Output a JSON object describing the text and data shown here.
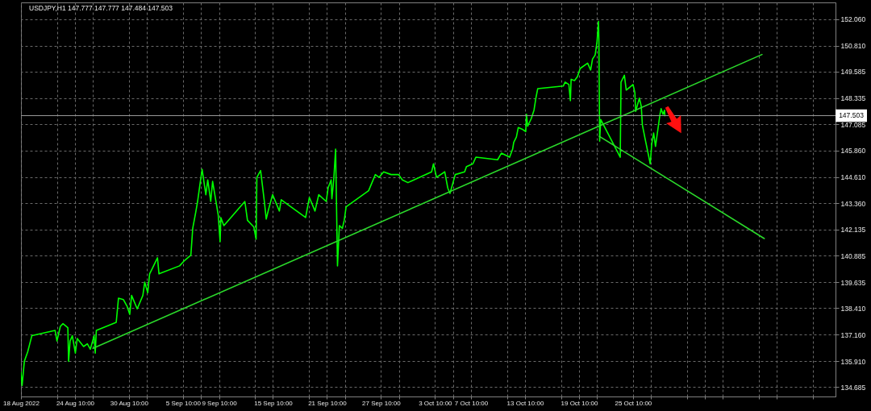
{
  "chart_data": {
    "type": "line",
    "title": "USDJPY,H1 147.777 147.777 147.484 147.503",
    "xlim": [
      "2022-08-18T10:00",
      "2022-11-16T22:00"
    ],
    "xticks": [
      {
        "value": "2022-08-18T10:00",
        "label": "18 Aug 2022"
      },
      {
        "value": "2022-08-22T10:00",
        "label": null
      },
      {
        "value": "2022-08-24T10:00",
        "label": "24 Aug 10:00"
      },
      {
        "value": "2022-08-26T10:00",
        "label": null
      },
      {
        "value": "2022-08-30T10:00",
        "label": "30 Aug 10:00"
      },
      {
        "value": "2022-09-01T10:00",
        "label": null
      },
      {
        "value": "2022-09-05T10:00",
        "label": "5 Sep 10:00"
      },
      {
        "value": "2022-09-07T10:00",
        "label": null
      },
      {
        "value": "2022-09-09T10:00",
        "label": "9 Sep 10:00"
      },
      {
        "value": "2022-09-13T10:00",
        "label": null
      },
      {
        "value": "2022-09-15T10:00",
        "label": "15 Sep 10:00"
      },
      {
        "value": "2022-09-19T10:00",
        "label": null
      },
      {
        "value": "2022-09-21T10:00",
        "label": "21 Sep 10:00"
      },
      {
        "value": "2022-09-23T10:00",
        "label": null
      },
      {
        "value": "2022-09-27T10:00",
        "label": "27 Sep 10:00"
      },
      {
        "value": "2022-09-29T10:00",
        "label": null
      },
      {
        "value": "2022-10-03T10:00",
        "label": "3 Oct 10:00"
      },
      {
        "value": "2022-10-05T10:00",
        "label": null
      },
      {
        "value": "2022-10-07T10:00",
        "label": "7 Oct 10:00"
      },
      {
        "value": "2022-10-11T10:00",
        "label": null
      },
      {
        "value": "2022-10-13T10:00",
        "label": "13 Oct 10:00"
      },
      {
        "value": "2022-10-17T10:00",
        "label": null
      },
      {
        "value": "2022-10-19T10:00",
        "label": "19 Oct 10:00"
      },
      {
        "value": "2022-10-21T10:00",
        "label": null
      },
      {
        "value": "2022-10-25T10:00",
        "label": "25 Oct 10:00"
      },
      {
        "value": "2022-10-27T10:00",
        "label": null
      },
      {
        "value": "2022-10-31T10:00",
        "label": null
      },
      {
        "value": "2022-11-02T10:00",
        "label": null
      },
      {
        "value": "2022-11-04T10:00",
        "label": null
      },
      {
        "value": "2022-11-08T10:00",
        "label": null
      },
      {
        "value": "2022-11-10T10:00",
        "label": null
      },
      {
        "value": "2022-11-14T10:00",
        "label": null
      }
    ],
    "ylim": [
      134.24,
      152.85
    ],
    "yticks": [
      134.685,
      {
        "value": 135.91,
        "label": "135.910"
      },
      {
        "value": 137.16,
        "label": "137.160"
      },
      {
        "value": 138.41,
        "label": "138.410"
      },
      139.635,
      140.885,
      142.135,
      {
        "value": 143.36,
        "label": "143.360"
      },
      {
        "value": 144.61,
        "label": "144.610"
      },
      {
        "value": 145.86,
        "label": "145.860"
      },
      147.085,
      148.335,
      149.585,
      {
        "value": 150.81,
        "label": "150.810"
      },
      {
        "value": 152.06,
        "label": "152.060"
      }
    ],
    "grid": true,
    "series": [
      {
        "color": "#00ff00",
        "x": [
          "2022-08-18T10:00",
          "2022-08-18T13:00",
          "2022-08-18T19:00",
          "2022-08-19T04:00",
          "2022-08-19T15:00",
          "2022-08-22T05:00",
          "2022-08-22T10:00",
          "2022-08-22T19:00",
          "2022-08-23T02:00",
          "2022-08-23T15:00",
          "2022-08-23T17:00",
          "2022-08-23T21:00",
          "2022-08-24T03:00",
          "2022-08-24T11:00",
          "2022-08-24T16:00",
          "2022-08-25T09:00",
          "2022-08-25T19:00",
          "2022-08-26T03:00",
          "2022-08-26T13:00",
          "2022-08-26T16:00",
          "2022-08-26T19:00",
          "2022-08-29T00:00",
          "2022-08-29T06:00",
          "2022-08-29T19:00",
          "2022-08-30T05:00",
          "2022-08-30T12:00",
          "2022-08-30T17:00",
          "2022-08-31T08:00",
          "2022-08-31T23:00",
          "2022-09-01T04:00",
          "2022-09-01T12:00",
          "2022-09-01T17:00",
          "2022-09-02T00:00",
          "2022-09-02T14:00",
          "2022-09-02T18:00",
          "2022-09-05T01:00",
          "2022-09-05T14:00",
          "2022-09-06T07:00",
          "2022-09-06T12:00",
          "2022-09-06T20:00",
          "2022-09-07T01:00",
          "2022-09-07T06:00",
          "2022-09-07T13:00",
          "2022-09-07T23:00",
          "2022-09-08T04:00",
          "2022-09-08T12:00",
          "2022-09-08T17:00",
          "2022-09-09T08:00",
          "2022-09-09T13:00",
          "2022-09-09T15:00",
          "2022-09-09T23:00",
          "2022-09-12T07:00",
          "2022-09-12T14:00",
          "2022-09-13T07:00",
          "2022-09-13T13:00",
          "2022-09-13T15:00",
          "2022-09-14T01:00",
          "2022-09-14T11:00",
          "2022-09-14T16:00",
          "2022-09-14T23:00",
          "2022-09-15T09:00",
          "2022-09-16T03:00",
          "2022-09-16T08:00",
          "2022-09-19T01:00",
          "2022-09-19T11:00",
          "2022-09-20T02:00",
          "2022-09-20T12:00",
          "2022-09-21T08:00",
          "2022-09-21T13:00",
          "2022-09-21T21:00",
          "2022-09-21T23:00",
          "2022-09-22T04:00",
          "2022-09-22T09:00",
          "2022-09-22T14:00",
          "2022-09-22T19:00",
          "2022-09-23T03:00",
          "2022-09-23T08:00",
          "2022-09-23T13:00",
          "2022-09-26T01:00",
          "2022-09-26T19:00",
          "2022-09-27T05:00",
          "2022-09-27T17:00",
          "2022-09-28T13:00",
          "2022-09-29T09:00",
          "2022-09-29T19:00",
          "2022-09-30T10:00",
          "2022-10-03T01:00",
          "2022-10-03T06:00",
          "2022-10-03T14:00",
          "2022-10-04T12:00",
          "2022-10-04T20:00",
          "2022-10-05T02:00",
          "2022-10-05T16:00",
          "2022-10-06T17:00",
          "2022-10-06T22:00",
          "2022-10-07T15:00",
          "2022-10-07T23:00",
          "2022-10-10T09:00",
          "2022-10-10T19:00",
          "2022-10-11T17:00",
          "2022-10-12T01:00",
          "2022-10-12T04:00",
          "2022-10-12T11:00",
          "2022-10-12T16:00",
          "2022-10-13T02:00",
          "2022-10-13T12:00",
          "2022-10-13T14:00",
          "2022-10-13T17:00",
          "2022-10-14T03:00",
          "2022-10-14T10:00",
          "2022-10-14T15:00",
          "2022-10-14T20:00",
          "2022-10-17T16:00",
          "2022-10-17T21:00",
          "2022-10-18T07:00",
          "2022-10-18T11:00",
          "2022-10-18T13:00",
          "2022-10-18T22:00",
          "2022-10-19T06:00",
          "2022-10-19T13:00",
          "2022-10-20T09:00",
          "2022-10-20T17:00",
          "2022-10-20T22:00",
          "2022-10-21T05:00",
          "2022-10-21T10:00",
          "2022-10-21T14:00",
          "2022-10-21T15:00",
          "2022-10-21T17:00",
          "2022-10-21T20:00",
          "2022-10-24T00:00",
          "2022-10-24T02:00",
          "2022-10-24T11:00",
          "2022-10-24T16:00",
          "2022-10-25T10:00",
          "2022-10-25T15:00",
          "2022-10-25T17:00",
          "2022-10-26T03:00",
          "2022-10-26T08:00",
          "2022-10-26T11:00",
          "2022-10-26T18:00",
          "2022-10-27T08:00",
          "2022-10-27T12:00",
          "2022-10-27T17:00",
          "2022-10-27T22:00",
          "2022-10-28T10:00",
          "2022-10-28T13:00",
          "2022-10-28T18:00",
          "2022-10-28T22:00",
          "2022-10-28T23:00"
        ],
        "values": [
          135.39,
          134.76,
          135.9,
          136.35,
          137.11,
          137.36,
          136.86,
          137.55,
          137.68,
          137.49,
          135.9,
          136.86,
          137.11,
          136.29,
          136.98,
          136.6,
          136.73,
          136.47,
          137.11,
          136.29,
          137.36,
          137.74,
          138.88,
          138.82,
          138.5,
          138.12,
          139.01,
          138.38,
          139.01,
          139.64,
          139.14,
          140.03,
          140.28,
          140.79,
          140.03,
          140.41,
          140.66,
          140.91,
          142.18,
          142.94,
          143.45,
          144.09,
          144.97,
          143.77,
          144.47,
          143.45,
          144.4,
          142.81,
          141.55,
          142.69,
          142.31,
          143.45,
          142.56,
          142.24,
          141.67,
          144.59,
          144.91,
          143.45,
          142.62,
          143.13,
          143.77,
          143.0,
          143.53,
          142.69,
          143.64,
          143.0,
          143.77,
          143.45,
          144.09,
          144.47,
          143.58,
          144.47,
          145.92,
          140.41,
          142.31,
          142.18,
          142.56,
          143.2,
          143.96,
          144.72,
          144.59,
          144.85,
          144.72,
          144.72,
          144.47,
          144.34,
          144.85,
          145.23,
          144.59,
          144.85,
          144.09,
          143.83,
          144.72,
          144.85,
          145.1,
          145.23,
          145.54,
          145.42,
          145.73,
          145.54,
          145.92,
          146.24,
          146.49,
          146.94,
          146.87,
          146.75,
          147.57,
          147.0,
          147.38,
          147.76,
          148.33,
          148.78,
          148.9,
          149.09,
          148.97,
          148.21,
          149.22,
          149.16,
          149.35,
          149.73,
          149.98,
          149.66,
          150.17,
          150.36,
          150.99,
          151.95,
          151.12,
          146.3,
          147.32,
          145.54,
          149.09,
          149.41,
          148.71,
          148.97,
          148.59,
          147.7,
          148.33,
          147.95,
          147.06,
          146.43,
          145.23,
          146.18,
          146.68,
          146.05,
          147.57,
          147.83,
          147.57,
          147.76,
          147.5
        ]
      },
      {
        "color": "#2bd92b",
        "x": [
          "2022-08-26T10:00",
          "2022-11-08T18:00"
        ],
        "values": [
          136.51,
          150.39
        ]
      },
      {
        "color": "#2bd92b",
        "x": [
          "2022-10-21T16:00",
          "2022-11-09T00:00"
        ],
        "values": [
          146.53,
          141.7
        ]
      }
    ],
    "ref_lines": [
      {
        "axis": "y",
        "value": 147.503,
        "label": "147.503",
        "color": "#9a9a9a"
      }
    ]
  }
}
